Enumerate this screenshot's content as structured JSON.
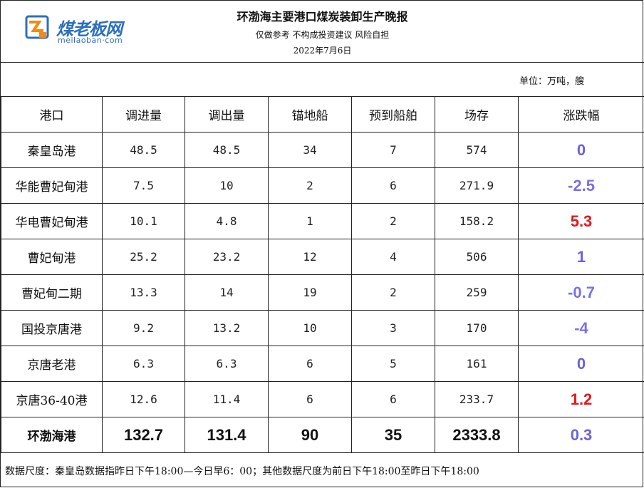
{
  "logo": {
    "text": "煤老板网",
    "sub": "meilaoban·com"
  },
  "header": {
    "title": "环渤海主要港口煤炭装卸生产晚报",
    "subtitle": "仅做参考 不构成投资建议 风险自担",
    "date": "2022年7月6日"
  },
  "unit": "单位：万吨，艘",
  "columns": [
    "港口",
    "调进量",
    "调出量",
    "锚地船",
    "预到船舶",
    "场存",
    "涨跌幅"
  ],
  "colors": {
    "up": "#e8151b",
    "down": "#7a70e6",
    "flat": "#6a62de",
    "logo": "#2a6fc1"
  },
  "rows": [
    {
      "port": "秦皇岛港",
      "in": "48.5",
      "out": "48.5",
      "anchor": "34",
      "expected": "7",
      "stock": "574",
      "change": "0",
      "dir": "flat"
    },
    {
      "port": "华能曹妃甸港",
      "in": "7.5",
      "out": "10",
      "anchor": "2",
      "expected": "6",
      "stock": "271.9",
      "change": "-2.5",
      "dir": "down"
    },
    {
      "port": "华电曹妃甸港",
      "in": "10.1",
      "out": "4.8",
      "anchor": "1",
      "expected": "2",
      "stock": "158.2",
      "change": "5.3",
      "dir": "up"
    },
    {
      "port": "曹妃甸港",
      "in": "25.2",
      "out": "23.2",
      "anchor": "12",
      "expected": "4",
      "stock": "506",
      "change": "1",
      "dir": "flat"
    },
    {
      "port": "曹妃甸二期",
      "in": "13.3",
      "out": "14",
      "anchor": "19",
      "expected": "2",
      "stock": "259",
      "change": "-0.7",
      "dir": "down"
    },
    {
      "port": "国投京唐港",
      "in": "9.2",
      "out": "13.2",
      "anchor": "10",
      "expected": "3",
      "stock": "170",
      "change": "-4",
      "dir": "down"
    },
    {
      "port": "京唐老港",
      "in": "6.3",
      "out": "6.3",
      "anchor": "6",
      "expected": "5",
      "stock": "161",
      "change": "0",
      "dir": "flat"
    },
    {
      "port": "京唐36-40港",
      "in": "12.6",
      "out": "11.4",
      "anchor": "6",
      "expected": "6",
      "stock": "233.7",
      "change": "1.2",
      "dir": "up"
    }
  ],
  "total": {
    "port": "环渤海港",
    "in": "132.7",
    "out": "131.4",
    "anchor": "90",
    "expected": "35",
    "stock": "2333.8",
    "change": "0.3",
    "dir": "flat"
  },
  "footnote": "数据尺度：秦皇岛数据指昨日下午18:00—今日早6：00；其他数据尺度为前日下午18:00至昨日下午18:00"
}
